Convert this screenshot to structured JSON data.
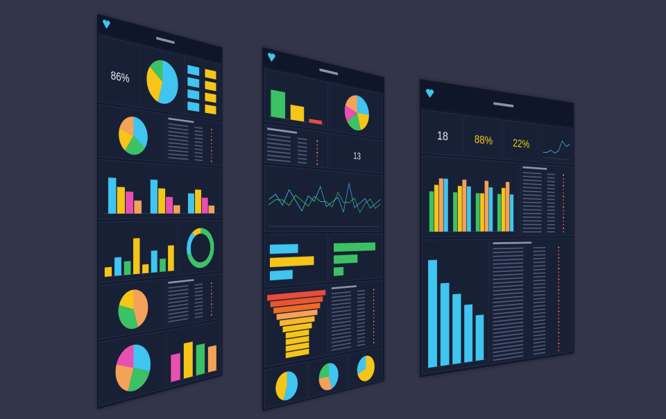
{
  "panels": [
    {
      "kpis": [
        {
          "text": "86%",
          "color": "#e8ecf5"
        }
      ],
      "charts": [
        {
          "kind": "pie",
          "values": [
            55,
            30,
            15
          ],
          "colors": [
            "#3fc5f0",
            "#f5c518",
            "#3cc264"
          ]
        },
        {
          "kind": "pie",
          "values": [
            35,
            25,
            20,
            20
          ],
          "colors": [
            "#3fc5f0",
            "#3cc264",
            "#f5c518",
            "#f4a259"
          ]
        },
        {
          "kind": "bars",
          "group": 4,
          "values": [
            8,
            6,
            5,
            3,
            8,
            6,
            4,
            2,
            5,
            6,
            4,
            2
          ],
          "ylim": [
            0,
            10
          ],
          "colors": [
            "#3fc5f0",
            "#f5c518",
            "#e84fb1",
            "#f4a259"
          ]
        },
        {
          "kind": "bars",
          "group": 1,
          "values": [
            2,
            4,
            3,
            8,
            2,
            5,
            3,
            6
          ],
          "ylim": [
            0,
            10
          ],
          "colors": [
            "#f5c518",
            "#3fc5f0",
            "#3cc264",
            "#f5c518"
          ]
        },
        {
          "kind": "donut",
          "values": [
            70,
            20,
            10
          ],
          "colors": [
            "#3cc264",
            "#3fc5f0",
            "#f5c518"
          ]
        },
        {
          "kind": "pie",
          "values": [
            45,
            35,
            20
          ],
          "colors": [
            "#f4a259",
            "#3cc264",
            "#f5c518"
          ]
        },
        {
          "kind": "pie",
          "values": [
            30,
            25,
            25,
            20
          ],
          "colors": [
            "#3fc5f0",
            "#3cc264",
            "#f4a259",
            "#e84fb1"
          ]
        },
        {
          "kind": "bars",
          "group": 1,
          "values": [
            6,
            8,
            7,
            6
          ],
          "ylim": [
            0,
            10
          ],
          "colors": [
            "#e84fb1",
            "#f5c518",
            "#3cc264",
            "#f4a259"
          ]
        }
      ]
    },
    {
      "kpis": [
        {
          "text": "13",
          "color": "#e8ecf5"
        }
      ],
      "charts": [
        {
          "kind": "bars",
          "group": 1,
          "values": [
            7,
            4,
            1
          ],
          "ylim": [
            0,
            10
          ],
          "colors": [
            "#3cc264",
            "#f5c518",
            "#e74c3c"
          ]
        },
        {
          "kind": "pie",
          "values": [
            25,
            20,
            20,
            15,
            20
          ],
          "colors": [
            "#3fc5f0",
            "#f5c518",
            "#3cc264",
            "#e84fb1",
            "#f4a259"
          ]
        },
        {
          "kind": "line",
          "ylim": [
            0,
            10
          ],
          "series": [
            {
              "color": "#3fc5f0",
              "values": [
                5,
                6,
                4,
                7,
                5,
                3,
                6,
                5,
                8,
                4,
                5,
                6,
                3,
                9,
                4,
                5,
                6,
                4,
                5,
                6
              ]
            },
            {
              "color": "#3cc264",
              "values": [
                4,
                5,
                5,
                4,
                6,
                5,
                4,
                6,
                5,
                5,
                4,
                7,
                5,
                5,
                6,
                3,
                5,
                6,
                4,
                5
              ]
            }
          ]
        },
        {
          "kind": "hbars",
          "values": [
            5,
            8,
            4
          ],
          "ylim": [
            0,
            10
          ],
          "colors": [
            "#3fc5f0",
            "#f5c518",
            "#3fc5f0"
          ]
        },
        {
          "kind": "hbars",
          "values": [
            9,
            5,
            2
          ],
          "ylim": [
            0,
            10
          ],
          "colors": [
            "#3cc264",
            "#3cc264",
            "#3cc264"
          ]
        },
        {
          "kind": "funnel",
          "values": [
            10,
            9,
            8,
            7,
            6,
            5,
            4,
            4,
            4,
            4
          ],
          "ylim": [
            0,
            10
          ],
          "colors": [
            "#e74c3c",
            "#e8552f",
            "#f06a28",
            "#f4a259",
            "#f5b82a",
            "#f5c518",
            "#f5c518",
            "#f5c518",
            "#f5c518",
            "#f5c518"
          ]
        },
        {
          "kind": "pie",
          "values": [
            55,
            45
          ],
          "colors": [
            "#3fc5f0",
            "#f5c518"
          ]
        },
        {
          "kind": "pie",
          "values": [
            45,
            30,
            25
          ],
          "colors": [
            "#3fc5f0",
            "#f4a259",
            "#3cc264"
          ]
        },
        {
          "kind": "pie",
          "values": [
            70,
            30
          ],
          "colors": [
            "#f5c518",
            "#3fc5f0"
          ]
        }
      ]
    },
    {
      "kpis": [
        {
          "text": "18",
          "color": "#e8ecf5"
        },
        {
          "text": "88%",
          "color": "#f5c518"
        },
        {
          "text": "22%",
          "color": "#f5c518"
        }
      ],
      "charts": [
        {
          "kind": "line",
          "ylim": [
            0,
            10
          ],
          "series": [
            {
              "color": "#3fc5f0",
              "values": [
                2,
                2,
                3,
                2,
                3,
                7,
                5,
                6
              ]
            }
          ]
        },
        {
          "kind": "bars",
          "group": 4,
          "values": [
            6,
            7,
            8,
            8,
            6,
            7,
            8,
            7,
            6,
            6,
            8,
            7,
            6,
            7,
            8,
            6
          ],
          "ylim": [
            0,
            10
          ],
          "colors": [
            "#3cc264",
            "#f5c518",
            "#f4a259",
            "#3fc5f0"
          ]
        },
        {
          "kind": "bars",
          "group": 1,
          "values": [
            9,
            7,
            6,
            5,
            4
          ],
          "ylim": [
            0,
            10
          ],
          "colors": [
            "#3fc5f0",
            "#3fc5f0",
            "#3fc5f0",
            "#3fc5f0",
            "#3fc5f0"
          ]
        }
      ]
    }
  ]
}
